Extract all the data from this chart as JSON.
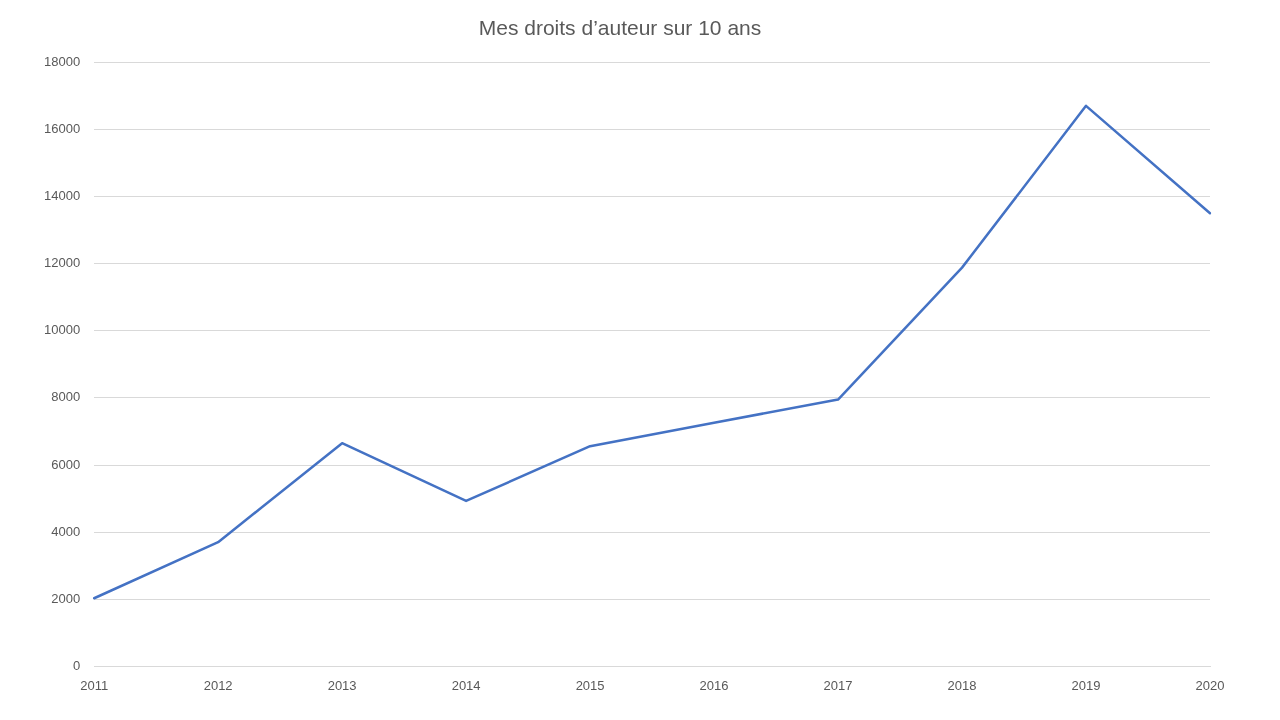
{
  "chart_data": {
    "type": "line",
    "title": "Mes droits d’auteur sur 10 ans",
    "categories": [
      "2011",
      "2012",
      "2013",
      "2014",
      "2015",
      "2016",
      "2017",
      "2018",
      "2019",
      "2020"
    ],
    "series": [
      {
        "color": "#4472c4",
        "values": [
          2030,
          3700,
          6650,
          4930,
          6560,
          7260,
          7950,
          11880,
          16700,
          13500
        ]
      }
    ],
    "ylim": [
      0,
      18000
    ],
    "yticks": [
      0,
      2000,
      4000,
      6000,
      8000,
      10000,
      12000,
      14000,
      16000,
      18000
    ],
    "grid": "y",
    "legend": false,
    "marker": "none",
    "line_style": "solid"
  }
}
